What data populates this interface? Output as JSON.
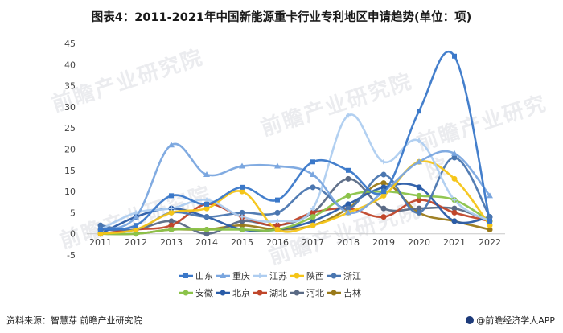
{
  "title": "图表4：2011-2021年中国新能源重卡行业专利地区申请趋势(单位：项)",
  "footer": {
    "source": "资料来源：智慧芽 前瞻产业研究院",
    "brand": "@前瞻经济学人APP"
  },
  "watermark_text": "前瞻产业研究院",
  "chart_data": {
    "type": "line",
    "title": "图表4：2011-2021年中国新能源重卡行业专利地区申请趋势(单位：项)",
    "xlabel": "",
    "ylabel": "",
    "categories": [
      "2011",
      "2012",
      "2013",
      "2014",
      "2015",
      "2016",
      "2017",
      "2018",
      "2019",
      "2020",
      "2021",
      "2022"
    ],
    "ylim": [
      -5,
      45
    ],
    "yticks": [
      -5,
      0,
      5,
      10,
      15,
      20,
      25,
      30,
      35,
      40,
      45
    ],
    "grid": false,
    "legend_position": "bottom",
    "series": [
      {
        "name": "山东",
        "color": "#3a78c9",
        "marker": "square",
        "values": [
          1,
          2,
          9,
          7,
          11,
          8,
          17,
          15,
          10,
          29,
          42,
          3
        ]
      },
      {
        "name": "重庆",
        "color": "#7aa6df",
        "marker": "triangle",
        "values": [
          1,
          4,
          21,
          14,
          16,
          16,
          14,
          5,
          10,
          17,
          19,
          9
        ]
      },
      {
        "name": "江苏",
        "color": "#aecdf0",
        "marker": "cross",
        "values": [
          1,
          5,
          6,
          8,
          4,
          3,
          6,
          28,
          17,
          22,
          8,
          3
        ]
      },
      {
        "name": "陕西",
        "color": "#f5c518",
        "marker": "circle",
        "values": [
          0,
          1,
          5,
          6,
          10,
          1,
          2,
          5,
          9,
          17,
          13,
          2
        ]
      },
      {
        "name": "浙江",
        "color": "#4a76b0",
        "marker": "circle",
        "values": [
          2,
          1,
          5,
          4,
          5,
          5,
          11,
          6,
          14,
          5,
          18,
          4
        ]
      },
      {
        "name": "安徽",
        "color": "#8bc34a",
        "marker": "circle",
        "values": [
          0,
          0,
          1,
          1,
          1,
          1,
          4,
          9,
          10,
          9,
          8,
          3
        ]
      },
      {
        "name": "北京",
        "color": "#2a5ca8",
        "marker": "circle",
        "values": [
          0,
          4,
          6,
          4,
          1,
          1,
          3,
          7,
          11,
          11,
          3,
          4
        ]
      },
      {
        "name": "湖北",
        "color": "#c0462a",
        "marker": "circle",
        "values": [
          0,
          1,
          2,
          7,
          4,
          2,
          5,
          6,
          4,
          8,
          5,
          3
        ]
      },
      {
        "name": "河北",
        "color": "#5a6a85",
        "marker": "circle",
        "values": [
          1,
          1,
          3,
          0,
          3,
          2,
          5,
          13,
          6,
          6,
          6,
          3
        ]
      },
      {
        "name": "吉林",
        "color": "#9a7a1a",
        "marker": "circle",
        "values": [
          0,
          0,
          1,
          1,
          2,
          1,
          2,
          6,
          12,
          5,
          3,
          1
        ]
      }
    ]
  }
}
